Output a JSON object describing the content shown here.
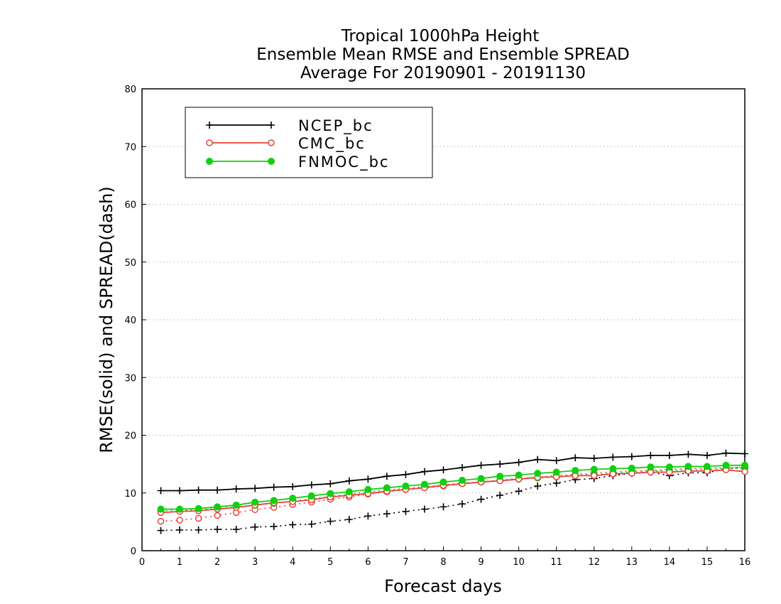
{
  "chart_data": {
    "type": "line",
    "title_lines": [
      "Tropical 1000hPa Height",
      "Ensemble Mean RMSE and Ensemble SPREAD",
      "Average For 20190901 - 20191130"
    ],
    "xlabel": "Forecast days",
    "ylabel": "RMSE(solid) and SPREAD(dash)",
    "xlim": [
      0,
      16
    ],
    "ylim": [
      0,
      80
    ],
    "xticks": [
      0,
      1,
      2,
      3,
      4,
      5,
      6,
      7,
      8,
      9,
      10,
      11,
      12,
      13,
      14,
      15,
      16
    ],
    "yticks": [
      0,
      10,
      20,
      30,
      40,
      50,
      60,
      70,
      80
    ],
    "grid": "horizontal dotted",
    "legend_position": "top-left",
    "x": [
      0.5,
      1,
      1.5,
      2,
      2.5,
      3,
      3.5,
      4,
      4.5,
      5,
      5.5,
      6,
      6.5,
      7,
      7.5,
      8,
      8.5,
      9,
      9.5,
      10,
      10.5,
      11,
      11.5,
      12,
      12.5,
      13,
      13.5,
      14,
      14.5,
      15,
      15.5,
      16
    ],
    "series": [
      {
        "name": "NCEP_bc",
        "color": "#000000",
        "marker": "plus",
        "rmse": [
          10.4,
          10.4,
          10.5,
          10.5,
          10.7,
          10.8,
          11.0,
          11.1,
          11.4,
          11.6,
          12.1,
          12.4,
          12.9,
          13.2,
          13.7,
          14.0,
          14.4,
          14.8,
          15.0,
          15.3,
          15.8,
          15.6,
          16.1,
          16.0,
          16.2,
          16.3,
          16.5,
          16.5,
          16.7,
          16.5,
          16.9,
          16.8
        ],
        "spread": [
          3.5,
          3.6,
          3.6,
          3.7,
          3.7,
          4.1,
          4.2,
          4.5,
          4.6,
          5.1,
          5.4,
          6.0,
          6.4,
          6.8,
          7.2,
          7.6,
          8.1,
          8.9,
          9.6,
          10.3,
          11.2,
          11.7,
          12.3,
          12.5,
          13.0,
          13.4,
          13.6,
          13.0,
          13.5,
          13.5,
          14.2,
          14.5
        ]
      },
      {
        "name": "CMC_bc",
        "color": "#e8423c",
        "marker": "open-circle",
        "rmse": [
          6.6,
          6.8,
          6.9,
          7.2,
          7.5,
          7.9,
          8.3,
          8.5,
          8.8,
          9.3,
          9.6,
          9.9,
          10.3,
          10.6,
          10.9,
          11.3,
          11.6,
          11.9,
          12.1,
          12.4,
          12.7,
          12.8,
          13.0,
          13.0,
          13.3,
          13.4,
          13.6,
          13.6,
          13.8,
          13.8,
          14.0,
          13.7
        ],
        "spread": [
          5.1,
          5.3,
          5.6,
          6.1,
          6.6,
          7.1,
          7.5,
          8.0,
          8.4,
          8.9,
          9.3,
          9.8,
          10.2,
          10.6,
          10.9,
          11.2,
          11.6,
          11.9,
          12.2,
          12.5,
          12.7,
          13.0,
          13.2,
          13.4,
          13.6,
          13.8,
          13.9,
          14.1,
          14.2,
          14.3,
          14.4,
          14.4
        ]
      },
      {
        "name": "FNMOC_bc",
        "color": "#10d010",
        "marker": "filled-circle",
        "rmse": [
          7.2,
          7.2,
          7.3,
          7.6,
          7.9,
          8.4,
          8.7,
          9.1,
          9.5,
          9.9,
          10.2,
          10.6,
          10.9,
          11.2,
          11.5,
          11.9,
          12.2,
          12.5,
          12.9,
          13.1,
          13.4,
          13.6,
          13.9,
          14.1,
          14.2,
          14.3,
          14.5,
          14.5,
          14.6,
          14.6,
          14.8,
          14.8
        ],
        "spread": [
          6.9,
          7.0,
          7.1,
          7.3,
          7.6,
          7.9,
          8.2,
          8.6,
          9.0,
          9.4,
          9.8,
          10.2,
          10.5,
          10.8,
          11.1,
          11.4,
          11.7,
          11.9,
          12.2,
          12.4,
          12.6,
          12.8,
          13.0,
          13.2,
          13.4,
          13.6,
          13.8,
          13.9,
          14.0,
          14.1,
          14.2,
          14.3
        ]
      }
    ]
  }
}
